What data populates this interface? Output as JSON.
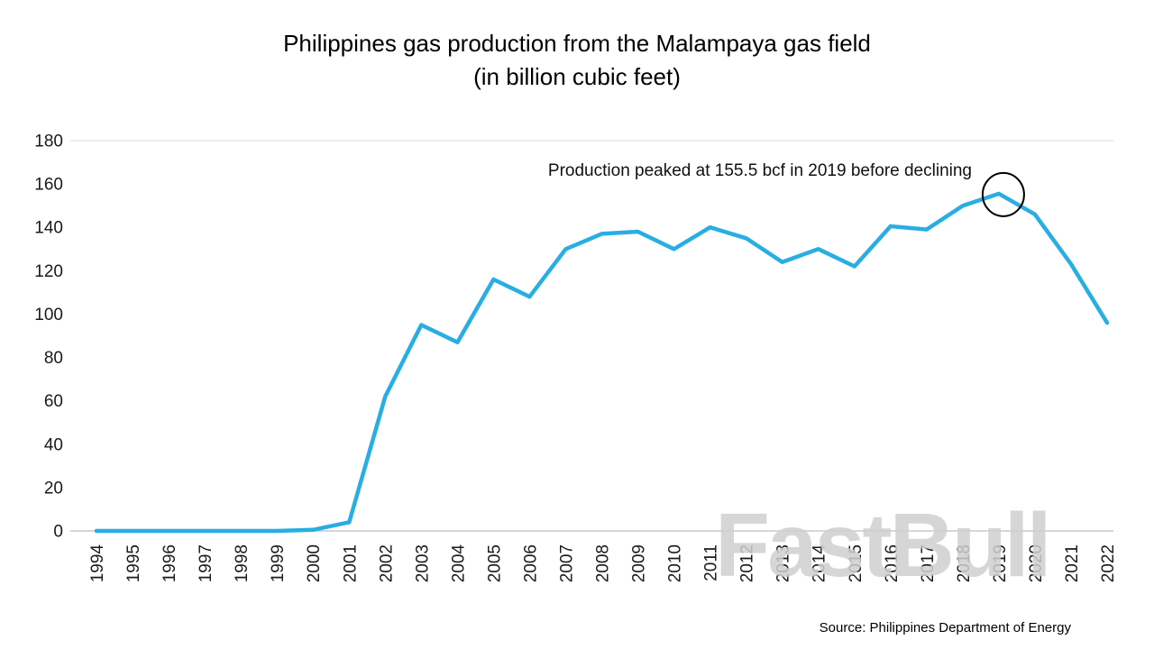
{
  "title": {
    "line1": "Philippines gas production from the Malampaya gas field",
    "line2": "(in billion cubic feet)"
  },
  "annotation": "Production peaked at 155.5 bcf in 2019 before declining",
  "watermark": "FastBull",
  "source": "Source: Philippines Department of Energy",
  "colors": {
    "line": "#29AEE3",
    "axis": "#BFBFBF",
    "gridline": "#D9D9D9",
    "tick_text": "#1A1A1A",
    "annotation_circle": "#000000",
    "watermark": "#D0D0D0"
  },
  "chart_data": {
    "type": "line",
    "title": "Philippines gas production from the Malampaya gas field (in billion cubic feet)",
    "xlabel": "",
    "ylabel": "",
    "ylim": [
      0,
      180
    ],
    "ytick_step": 20,
    "grid": "top boundary line at 180 and x-axis line at 0 only",
    "legend": "none",
    "categories": [
      "1994",
      "1995",
      "1996",
      "1997",
      "1998",
      "1999",
      "2000",
      "2001",
      "2002",
      "2003",
      "2004",
      "2005",
      "2006",
      "2007",
      "2008",
      "2009",
      "2010",
      "2011",
      "2012",
      "2013",
      "2014",
      "2015",
      "2016",
      "2017",
      "2018",
      "2019",
      "2020",
      "2021",
      "2022"
    ],
    "values": [
      0,
      0,
      0,
      0,
      0,
      0,
      0.5,
      4,
      62,
      95,
      87,
      116,
      108,
      130,
      137,
      138,
      130,
      140,
      135,
      124,
      130,
      122,
      140.5,
      139,
      150,
      155.5,
      146,
      123,
      96
    ],
    "peak": {
      "year": "2019",
      "value": 155.5
    },
    "annotation_text": "Production peaked at 155.5 bcf in 2019 before declining"
  }
}
